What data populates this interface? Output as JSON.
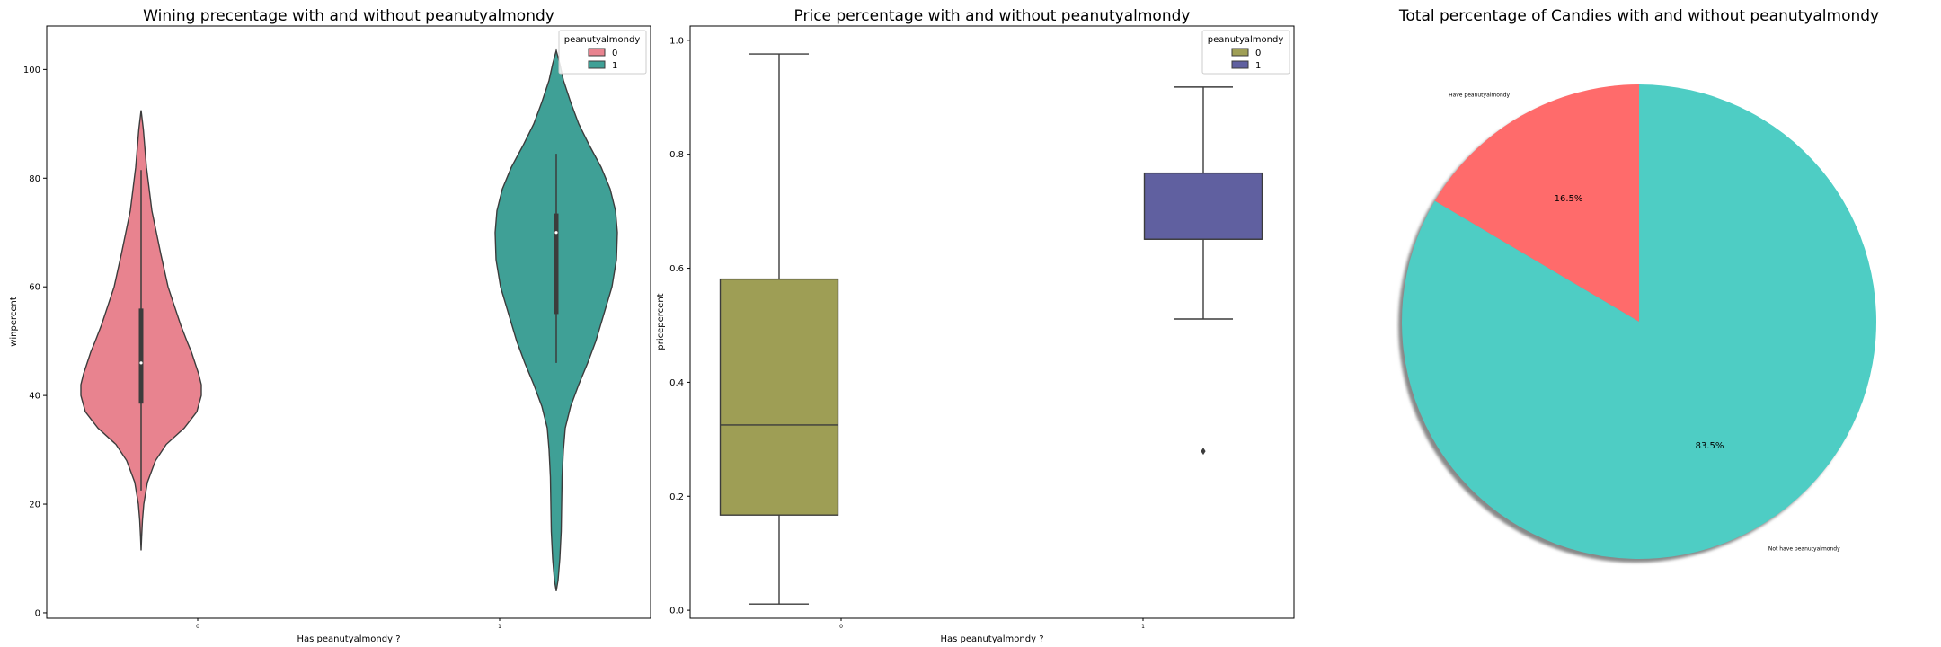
{
  "chart_data": [
    {
      "type": "violin",
      "title": "Wining precentage with and without peanutyalmondy",
      "xlabel": "Has peanutyalmondy ?",
      "ylabel": "winpercent",
      "categories": [
        "0",
        "1"
      ],
      "ylim": [
        -1,
        108
      ],
      "yticks": [
        0,
        20,
        40,
        60,
        80,
        100
      ],
      "legend": {
        "title": "peanutyalmondy",
        "placement": "top-right",
        "entries": [
          "0",
          "1"
        ]
      },
      "colors": [
        "#e8838f",
        "#3fa096"
      ],
      "series": [
        {
          "name": "0",
          "box": {
            "q1": 38.5,
            "median": 46,
            "q3": 56,
            "whisker_low": 22.5,
            "whisker_high": 81.5
          },
          "density": [
            [
              11.5,
              0.0
            ],
            [
              14,
              0.6
            ],
            [
              17,
              1.5
            ],
            [
              20,
              3
            ],
            [
              24,
              7
            ],
            [
              28,
              16
            ],
            [
              31,
              28
            ],
            [
              34,
              48
            ],
            [
              37,
              62
            ],
            [
              40,
              67
            ],
            [
              42,
              67
            ],
            [
              44,
              64
            ],
            [
              46,
              60
            ],
            [
              48,
              56
            ],
            [
              50,
              51
            ],
            [
              53,
              44
            ],
            [
              57,
              36
            ],
            [
              60,
              30
            ],
            [
              63,
              26
            ],
            [
              66,
              22
            ],
            [
              70,
              17
            ],
            [
              74,
              12
            ],
            [
              78,
              9
            ],
            [
              82,
              6
            ],
            [
              86,
              4
            ],
            [
              89,
              2.5
            ],
            [
              92.5,
              0.0
            ]
          ]
        },
        {
          "name": "1",
          "box": {
            "q1": 55,
            "median": 70,
            "q3": 73.5,
            "whisker_low": 46,
            "whisker_high": 84.5
          },
          "density": [
            [
              4,
              0.0
            ],
            [
              6,
              2
            ],
            [
              10,
              4
            ],
            [
              15,
              5.5
            ],
            [
              20,
              6
            ],
            [
              25,
              6.5
            ],
            [
              30,
              8
            ],
            [
              34,
              10
            ],
            [
              38,
              16
            ],
            [
              42,
              25
            ],
            [
              46,
              35
            ],
            [
              50,
              44
            ],
            [
              55,
              53
            ],
            [
              60,
              62
            ],
            [
              65,
              67
            ],
            [
              70,
              68
            ],
            [
              74,
              66
            ],
            [
              78,
              60
            ],
            [
              82,
              50
            ],
            [
              86,
              37
            ],
            [
              90,
              25
            ],
            [
              94,
              16
            ],
            [
              98,
              8
            ],
            [
              101,
              4
            ],
            [
              103.5,
              0.0
            ]
          ]
        }
      ]
    },
    {
      "type": "box",
      "title": "Price percentage with and without peanutyalmondy",
      "xlabel": "Has peanutyalmondy ?",
      "ylabel": "pricepercent",
      "categories": [
        "0",
        "1"
      ],
      "ylim": [
        -0.014,
        1.025
      ],
      "yticks": [
        "0.0",
        "0.2",
        "0.4",
        "0.6",
        "0.8",
        "1.0"
      ],
      "legend": {
        "title": "peanutyalmondy",
        "placement": "top-right",
        "entries": [
          "0",
          "1"
        ]
      },
      "colors": [
        "#9e9e55",
        "#6060a0"
      ],
      "series": [
        {
          "name": "0",
          "q1": 0.167,
          "median": 0.325,
          "q3": 0.581,
          "whisker_low": 0.011,
          "whisker_high": 0.976,
          "outliers": []
        },
        {
          "name": "1",
          "q1": 0.651,
          "median": 0.651,
          "q3": 0.767,
          "whisker_low": 0.511,
          "whisker_high": 0.918,
          "outliers": [
            0.279
          ]
        }
      ]
    },
    {
      "type": "pie",
      "title": "Total percentage of Candies with and without peanutyalmondy",
      "shadow": true,
      "slices": [
        {
          "label": "Have peanutyalmondy",
          "value": 16.5,
          "pct_label": "16.5%",
          "color": "#ff6b6b"
        },
        {
          "label": "Not have peanutyalmondy",
          "value": 83.5,
          "pct_label": "83.5%",
          "color": "#4ecdc4"
        }
      ]
    }
  ]
}
